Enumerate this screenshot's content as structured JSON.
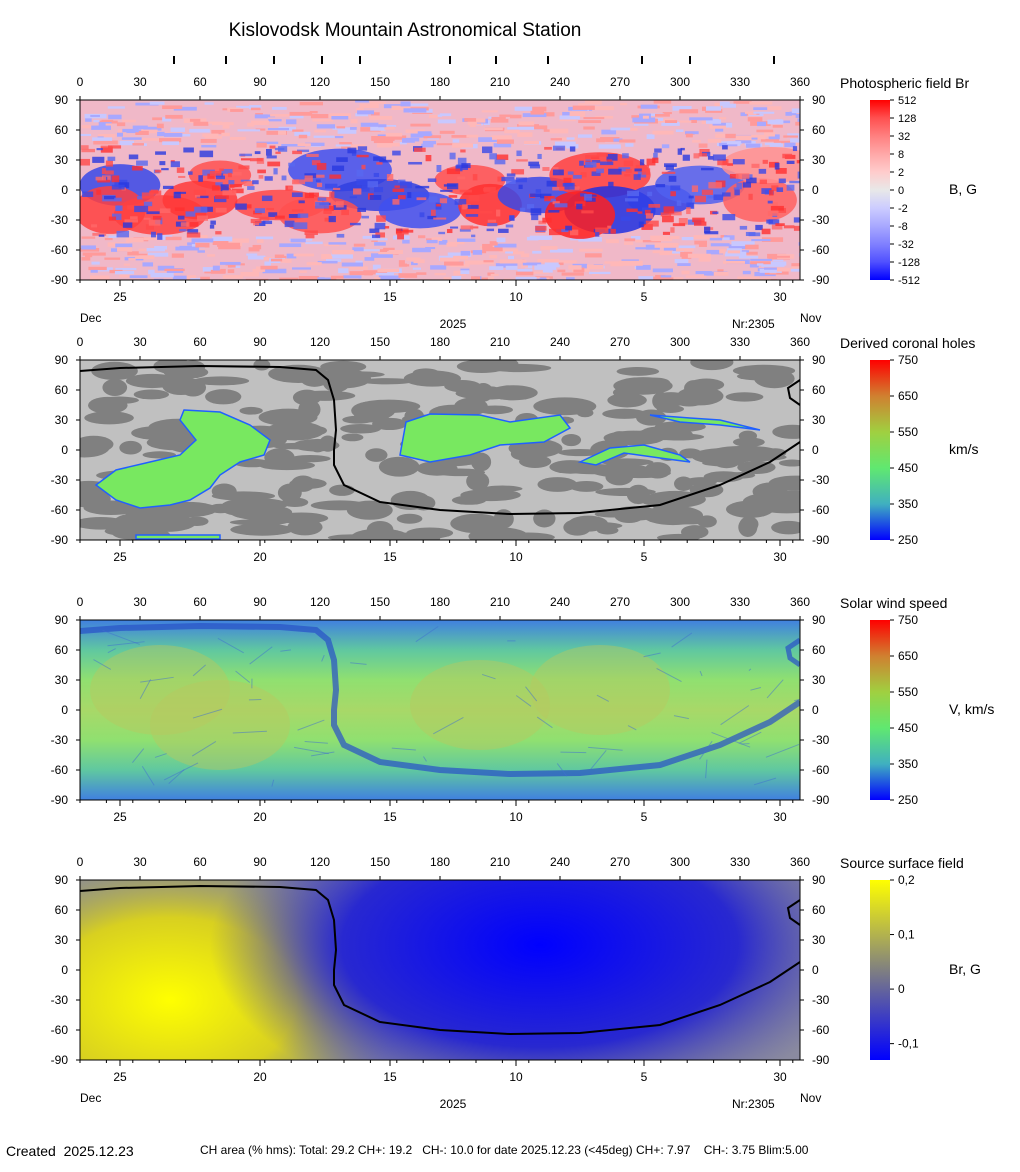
{
  "title": "Kislovodsk Mountain Astronomical Station",
  "top_date_marks_lon": [
    47,
    73,
    97,
    121,
    140,
    185,
    208,
    234,
    281,
    305,
    347
  ],
  "colors": {
    "neg_strong": "#0000ff",
    "pos_strong": "#ff0000",
    "ch_gray_light": "#c0c0c0",
    "ch_gray_dark": "#808080",
    "neutral_line": "#000000"
  },
  "footer": {
    "created": "Created  2025.12.23",
    "info": "CH area (% hms): Total: 29.2 CH+: 19.2   CH-: 10.0 for date 2025.12.23 (<45deg) CH+: 7.97    CH-: 3.75 Blim:5.00"
  },
  "chart_data": [
    {
      "type": "heatmap",
      "id": "photospheric",
      "title": "Photospheric field Br",
      "colorbar_title": "B, G",
      "colorbar_ticks": [
        "512",
        "128",
        "32",
        "8",
        "2",
        "0",
        "-2",
        "-8",
        "-32",
        "-128",
        "-512"
      ],
      "colorbar_stops": [
        "#ff0000",
        "#ff5050",
        "#ff8080",
        "#ffa8a8",
        "#ffcccc",
        "#e8e8e8",
        "#ccccff",
        "#a8a8ff",
        "#8080ff",
        "#5050ff",
        "#0000ff"
      ],
      "x_ticks": [
        "0",
        "30",
        "60",
        "90",
        "120",
        "150",
        "180",
        "210",
        "240",
        "270",
        "300",
        "330",
        "360"
      ],
      "y_ticks": [
        "90",
        "60",
        "30",
        "0",
        "-30",
        "-60",
        "-90"
      ],
      "xlim": [
        0,
        360
      ],
      "ylim": [
        -90,
        90
      ],
      "date_ticks": [
        "25",
        "20",
        "15",
        "10",
        "5",
        "30"
      ],
      "date_ticks_lon": [
        20,
        90,
        155,
        218,
        282,
        350
      ],
      "date_labels": {
        "left": "Dec",
        "center": "2025",
        "rotation": "Nr:2305",
        "right": "Nov"
      }
    },
    {
      "type": "heatmap",
      "id": "coronal_holes",
      "title": "Derived coronal holes",
      "colorbar_title": "km/s",
      "colorbar_ticks": [
        "750",
        "650",
        "550",
        "450",
        "350",
        "250"
      ],
      "colorbar_stops": [
        "#ff0000",
        "#d08030",
        "#a0d040",
        "#60e870",
        "#40b0c0",
        "#0000ff"
      ],
      "x_ticks": [
        "0",
        "30",
        "60",
        "90",
        "120",
        "150",
        "180",
        "210",
        "240",
        "270",
        "300",
        "330",
        "360"
      ],
      "y_ticks": [
        "90",
        "60",
        "30",
        "0",
        "-30",
        "-60",
        "-90"
      ],
      "xlim": [
        0,
        360
      ],
      "ylim": [
        -90,
        90
      ],
      "date_ticks": [
        "25",
        "20",
        "15",
        "10",
        "5",
        "30"
      ],
      "date_ticks_lon": [
        20,
        90,
        155,
        218,
        282,
        350
      ]
    },
    {
      "type": "heatmap",
      "id": "solar_wind",
      "title": "Solar wind speed",
      "colorbar_title": "V, km/s",
      "colorbar_ticks": [
        "750",
        "650",
        "550",
        "450",
        "350",
        "250"
      ],
      "colorbar_stops": [
        "#ff0000",
        "#d08030",
        "#a0d040",
        "#60e870",
        "#40b0c0",
        "#0000ff"
      ],
      "x_ticks": [
        "0",
        "30",
        "60",
        "90",
        "120",
        "150",
        "180",
        "210",
        "240",
        "270",
        "300",
        "330",
        "360"
      ],
      "y_ticks": [
        "90",
        "60",
        "30",
        "0",
        "-30",
        "-60",
        "-90"
      ],
      "xlim": [
        0,
        360
      ],
      "ylim": [
        -90,
        90
      ],
      "date_ticks": [
        "25",
        "20",
        "15",
        "10",
        "5",
        "30"
      ],
      "date_ticks_lon": [
        20,
        90,
        155,
        218,
        282,
        350
      ]
    },
    {
      "type": "heatmap",
      "id": "source_surface",
      "title": "Source surface field",
      "colorbar_title": "Br, G",
      "colorbar_ticks": [
        "0,2",
        "0,1",
        "0",
        "-0,1"
      ],
      "colorbar_stops": [
        "#ffff00",
        "#c0c040",
        "#808080",
        "#4040c0",
        "#0000ff"
      ],
      "x_ticks": [
        "0",
        "30",
        "60",
        "90",
        "120",
        "150",
        "180",
        "210",
        "240",
        "270",
        "300",
        "330",
        "360"
      ],
      "y_ticks": [
        "90",
        "60",
        "30",
        "0",
        "-30",
        "-60",
        "-90"
      ],
      "xlim": [
        0,
        360
      ],
      "ylim": [
        -90,
        90
      ],
      "date_ticks": [
        "25",
        "20",
        "15",
        "10",
        "5",
        "30"
      ],
      "date_ticks_lon": [
        20,
        90,
        155,
        218,
        282,
        350
      ],
      "date_labels": {
        "left": "Dec",
        "center": "2025",
        "rotation": "Nr:2305",
        "right": "Nov"
      }
    }
  ]
}
